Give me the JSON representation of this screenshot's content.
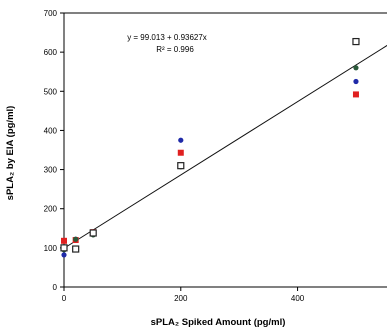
{
  "chart_data": {
    "type": "scatter",
    "xlabel": "sPLA₂ Spiked Amount (pg/ml)",
    "ylabel": "sPLA₂ by EIA (pg/ml)",
    "xlim": [
      0,
      560
    ],
    "ylim": [
      0,
      700
    ],
    "x_ticks": [
      0,
      200,
      400
    ],
    "y_ticks": [
      0,
      100,
      200,
      300,
      400,
      500,
      600,
      700
    ],
    "annotations": {
      "equation": "y = 99.013 + 0.93627x",
      "r_squared": "R² = 0.996"
    },
    "fit_line": {
      "intercept": 99.013,
      "slope": 0.93627
    },
    "series": [
      {
        "marker": "circle-filled",
        "color": "#1f2aa8",
        "points": [
          [
            0,
            82
          ],
          [
            20,
            122
          ],
          [
            50,
            138
          ],
          [
            200,
            375
          ],
          [
            500,
            525
          ]
        ]
      },
      {
        "marker": "square-filled",
        "color": "#e02020",
        "points": [
          [
            0,
            118
          ],
          [
            20,
            120
          ],
          [
            50,
            140
          ],
          [
            200,
            343
          ],
          [
            500,
            492
          ]
        ]
      },
      {
        "marker": "circle-dark",
        "color": "#2a5a3a",
        "points": [
          [
            0,
            95
          ],
          [
            20,
            122
          ],
          [
            50,
            133
          ],
          [
            200,
            307
          ],
          [
            500,
            560
          ]
        ]
      },
      {
        "marker": "square-open",
        "color": "#222222",
        "points": [
          [
            0,
            100
          ],
          [
            20,
            97
          ],
          [
            50,
            138
          ],
          [
            200,
            310
          ],
          [
            500,
            627
          ]
        ]
      }
    ]
  }
}
